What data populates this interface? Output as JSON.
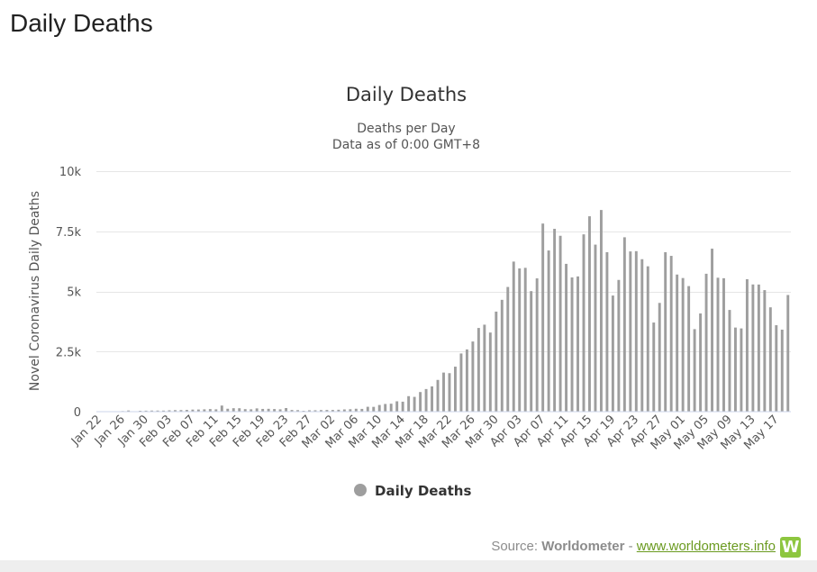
{
  "page": {
    "heading": "Daily Deaths"
  },
  "source": {
    "prefix": "Source: ",
    "name": "Worldometer",
    "separator": " - ",
    "link_text": "www.worldometers.info",
    "logo_letter": "W"
  },
  "colors": {
    "bars": "#9e9e9e",
    "grid": "#e6e6e6",
    "text": "#333333",
    "link": "#6a9a1f",
    "logo": "#8dc63f"
  },
  "chart_data": {
    "type": "bar",
    "title": "Daily Deaths",
    "subtitle_lines": [
      "Deaths per Day",
      "Data as of 0:00 GMT+8"
    ],
    "ylabel": "Novel Coronavirus Daily Deaths",
    "ylim": [
      0,
      10000
    ],
    "yticks": [
      0,
      2500,
      5000,
      7500,
      10000
    ],
    "ytick_labels": [
      "0",
      "2.5k",
      "5k",
      "7.5k",
      "10k"
    ],
    "grid": true,
    "legend": {
      "position": "bottom-center",
      "label": "Daily Deaths"
    },
    "categories": [
      "Jan 22",
      "Jan 23",
      "Jan 24",
      "Jan 25",
      "Jan 26",
      "Jan 27",
      "Jan 28",
      "Jan 29",
      "Jan 30",
      "Jan 31",
      "Feb 01",
      "Feb 02",
      "Feb 03",
      "Feb 04",
      "Feb 05",
      "Feb 06",
      "Feb 07",
      "Feb 08",
      "Feb 09",
      "Feb 10",
      "Feb 11",
      "Feb 12",
      "Feb 13",
      "Feb 14",
      "Feb 15",
      "Feb 16",
      "Feb 17",
      "Feb 18",
      "Feb 19",
      "Feb 20",
      "Feb 21",
      "Feb 22",
      "Feb 23",
      "Feb 24",
      "Feb 25",
      "Feb 26",
      "Feb 27",
      "Feb 28",
      "Feb 29",
      "Mar 01",
      "Mar 02",
      "Mar 03",
      "Mar 04",
      "Mar 05",
      "Mar 06",
      "Mar 07",
      "Mar 08",
      "Mar 09",
      "Mar 10",
      "Mar 11",
      "Mar 12",
      "Mar 13",
      "Mar 14",
      "Mar 15",
      "Mar 16",
      "Mar 17",
      "Mar 18",
      "Mar 19",
      "Mar 20",
      "Mar 21",
      "Mar 22",
      "Mar 23",
      "Mar 24",
      "Mar 25",
      "Mar 26",
      "Mar 27",
      "Mar 28",
      "Mar 29",
      "Mar 30",
      "Mar 31",
      "Apr 01",
      "Apr 02",
      "Apr 03",
      "Apr 04",
      "Apr 05",
      "Apr 06",
      "Apr 07",
      "Apr 08",
      "Apr 09",
      "Apr 10",
      "Apr 11",
      "Apr 12",
      "Apr 13",
      "Apr 14",
      "Apr 15",
      "Apr 16",
      "Apr 17",
      "Apr 18",
      "Apr 19",
      "Apr 20",
      "Apr 21",
      "Apr 22",
      "Apr 23",
      "Apr 24",
      "Apr 25",
      "Apr 26",
      "Apr 27",
      "Apr 28",
      "Apr 29",
      "Apr 30",
      "May 01",
      "May 02",
      "May 03",
      "May 04",
      "May 05",
      "May 06",
      "May 07",
      "May 08",
      "May 09",
      "May 10",
      "May 11",
      "May 12",
      "May 13",
      "May 14",
      "May 15",
      "May 16",
      "May 17",
      "May 18",
      "May 19"
    ],
    "values": [
      17,
      8,
      16,
      14,
      26,
      49,
      2,
      38,
      42,
      46,
      46,
      45,
      57,
      64,
      66,
      73,
      86,
      89,
      97,
      108,
      97,
      254,
      121,
      143,
      142,
      105,
      98,
      136,
      114,
      118,
      109,
      97,
      150,
      71,
      64,
      37,
      58,
      58,
      67,
      71,
      71,
      80,
      93,
      101,
      121,
      115,
      203,
      200,
      277,
      320,
      332,
      431,
      415,
      645,
      615,
      816,
      941,
      1050,
      1320,
      1625,
      1601,
      1871,
      2419,
      2588,
      2917,
      3480,
      3617,
      3290,
      4160,
      4650,
      5185,
      6240,
      5955,
      5980,
      5012,
      5542,
      7821,
      6702,
      7602,
      7312,
      6146,
      5581,
      5623,
      7372,
      8124,
      6945,
      8385,
      6632,
      4828,
      5477,
      7251,
      6663,
      6673,
      6339,
      6044,
      3706,
      4522,
      6630,
      6478,
      5701,
      5556,
      5221,
      3431,
      4084,
      5734,
      6776,
      5569,
      5548,
      4229,
      3497,
      3461,
      5508,
      5289,
      5286,
      5053,
      4338,
      3594,
      3410,
      4850
    ]
  },
  "x_labels": [
    "Jan 22",
    "Jan 26",
    "Jan 30",
    "Feb 03",
    "Feb 07",
    "Feb 11",
    "Feb 15",
    "Feb 19",
    "Feb 23",
    "Feb 27",
    "Mar 02",
    "Mar 06",
    "Mar 10",
    "Mar 14",
    "Mar 18",
    "Mar 22",
    "Mar 26",
    "Mar 30",
    "Apr 03",
    "Apr 07",
    "Apr 11",
    "Apr 15",
    "Apr 19",
    "Apr 23",
    "Apr 27",
    "May 01",
    "May 05",
    "May 09",
    "May 13",
    "May 17"
  ]
}
